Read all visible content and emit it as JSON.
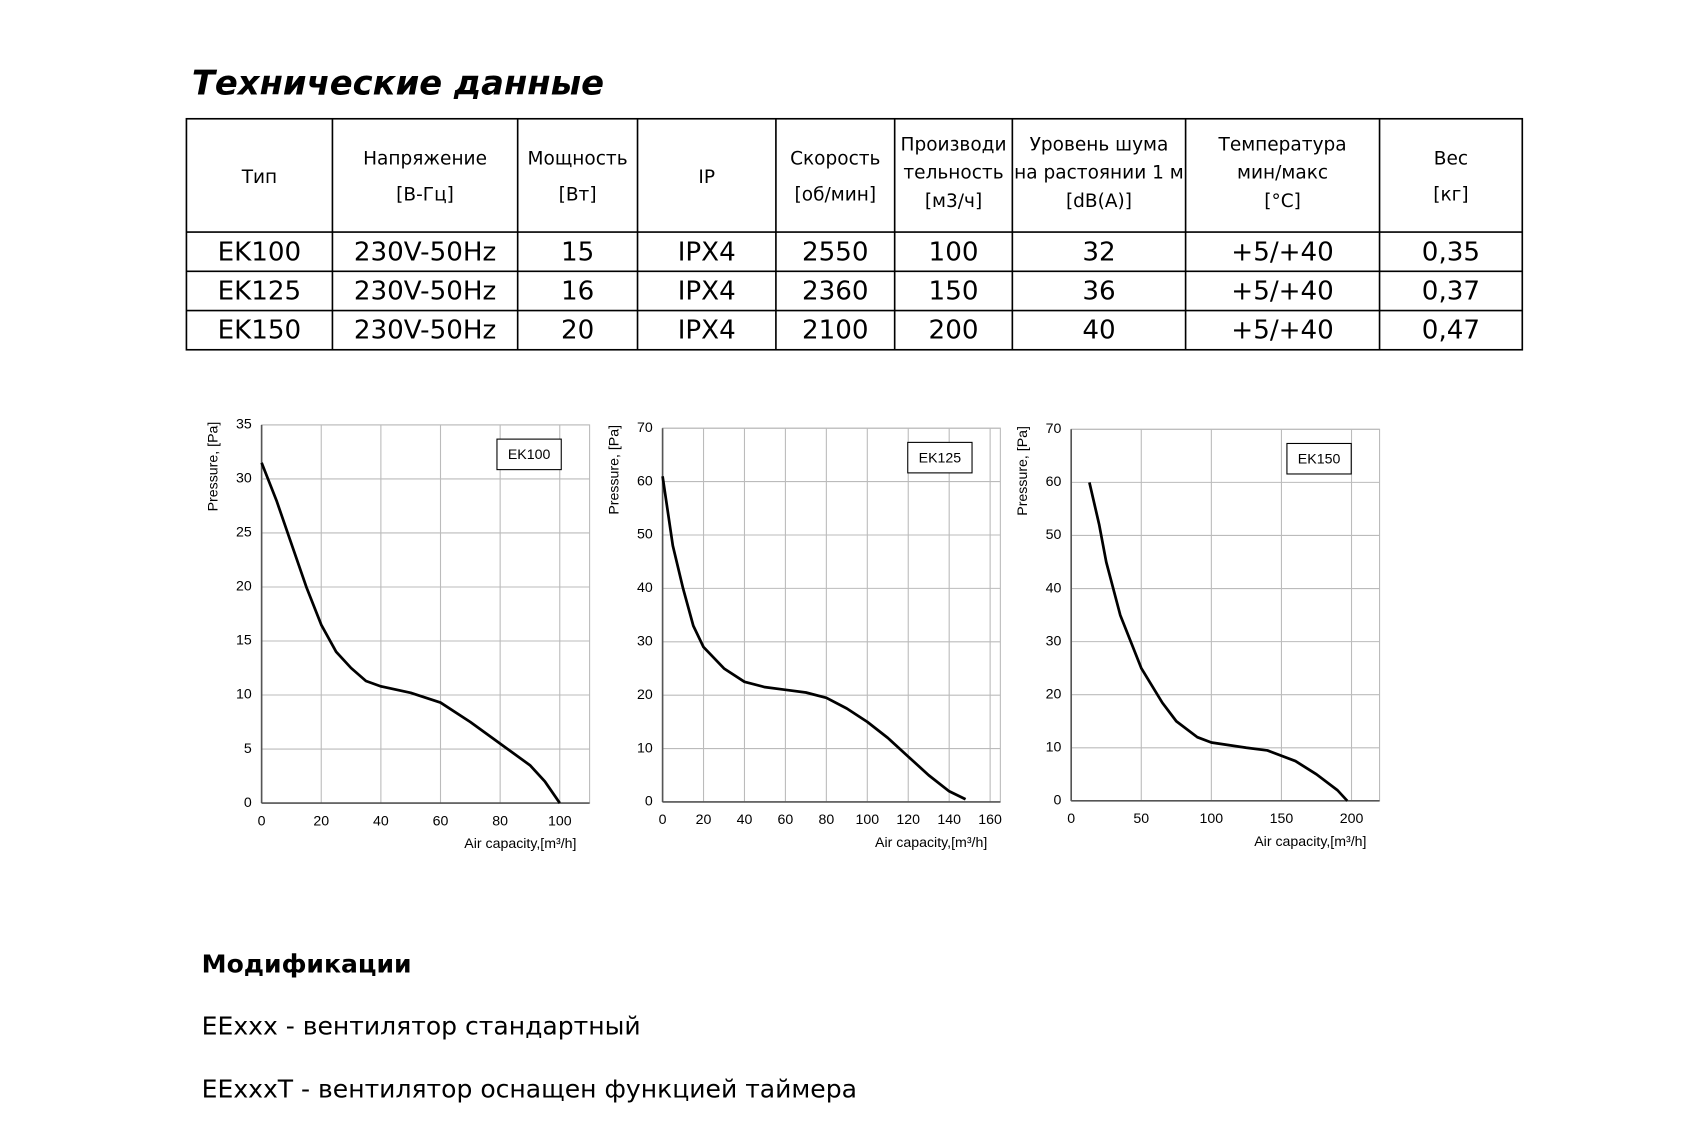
{
  "header": {
    "title": "Технические данные"
  },
  "table": {
    "headers": [
      [
        "Тип"
      ],
      [
        "Напряжение",
        "[В-Гц]"
      ],
      [
        "Мощность",
        "[Вт]"
      ],
      [
        "IP"
      ],
      [
        "Скорость",
        "[об/мин]"
      ],
      [
        "Производи",
        "тельность",
        "[м3/ч]"
      ],
      [
        "Уровень шума",
        "на растоянии 1 м",
        "[dB(A)]"
      ],
      [
        "Температура",
        "мин/макс",
        "[°C]"
      ],
      [
        "Вес",
        "[кг]"
      ]
    ],
    "rows": [
      [
        "EK100",
        "230V-50Hz",
        "15",
        "IPX4",
        "2550",
        "100",
        "32",
        "+5/+40",
        "0,35"
      ],
      [
        "EK125",
        "230V-50Hz",
        "16",
        "IPX4",
        "2360",
        "150",
        "36",
        "+5/+40",
        "0,37"
      ],
      [
        "EK150",
        "230V-50Hz",
        "20",
        "IPX4",
        "2100",
        "200",
        "40",
        "+5/+40",
        "0,47"
      ]
    ]
  },
  "chart_data": [
    {
      "type": "line",
      "title": "EK100",
      "x_label": "Air capacity,[m³/h]",
      "y_label": "Pressure, [Pa]",
      "x": [
        0,
        5,
        10,
        15,
        20,
        25,
        30,
        35,
        40,
        50,
        60,
        70,
        80,
        90,
        95,
        100
      ],
      "series": [
        {
          "color": "#000000",
          "values": [
            31.5,
            28,
            24,
            20,
            16.5,
            14,
            12.5,
            11.3,
            10.8,
            10.2,
            9.3,
            7.5,
            5.5,
            3.5,
            2,
            0
          ]
        }
      ],
      "xlim": [
        0,
        110
      ],
      "ylim": [
        0,
        35
      ],
      "xticks": [
        0,
        20,
        40,
        60,
        80,
        100
      ],
      "yticks": [
        0,
        5,
        10,
        15,
        20,
        25,
        30,
        35
      ],
      "grid": true
    },
    {
      "type": "line",
      "title": "EK125",
      "x_label": "Air capacity,[m³/h]",
      "y_label": "Pressure, [Pa]",
      "x": [
        0,
        5,
        10,
        15,
        20,
        30,
        40,
        50,
        60,
        70,
        80,
        90,
        100,
        110,
        120,
        130,
        140,
        148
      ],
      "series": [
        {
          "color": "#000000",
          "values": [
            61,
            48,
            40,
            33,
            29,
            25,
            22.5,
            21.5,
            21,
            20.5,
            19.5,
            17.5,
            15,
            12,
            8.5,
            5,
            2,
            0.5
          ]
        }
      ],
      "xlim": [
        0,
        165
      ],
      "ylim": [
        0,
        70
      ],
      "xticks": [
        0,
        20,
        40,
        60,
        80,
        100,
        120,
        140,
        160
      ],
      "yticks": [
        0,
        10,
        20,
        30,
        40,
        50,
        60,
        70
      ],
      "grid": true
    },
    {
      "type": "line",
      "title": "EK150",
      "x_label": "Air capacity,[m³/h]",
      "y_label": "Pressure, [Pa]",
      "x": [
        13,
        20,
        25,
        35,
        50,
        65,
        75,
        90,
        100,
        125,
        140,
        160,
        175,
        190,
        197
      ],
      "series": [
        {
          "color": "#000000",
          "values": [
            60,
            52,
            45,
            35,
            25,
            18.5,
            15,
            12,
            11,
            10,
            9.5,
            7.5,
            5,
            2,
            0
          ]
        }
      ],
      "xlim": [
        0,
        220
      ],
      "ylim": [
        0,
        70
      ],
      "xticks": [
        0,
        50,
        100,
        150,
        200
      ],
      "yticks": [
        0,
        10,
        20,
        30,
        40,
        50,
        60,
        70
      ],
      "grid": true
    }
  ],
  "modifications": {
    "title": "Модификации",
    "items": [
      "EExxx - вентилятор стандартный",
      "EExxxT - вентилятор оснащен функцией таймера"
    ]
  }
}
